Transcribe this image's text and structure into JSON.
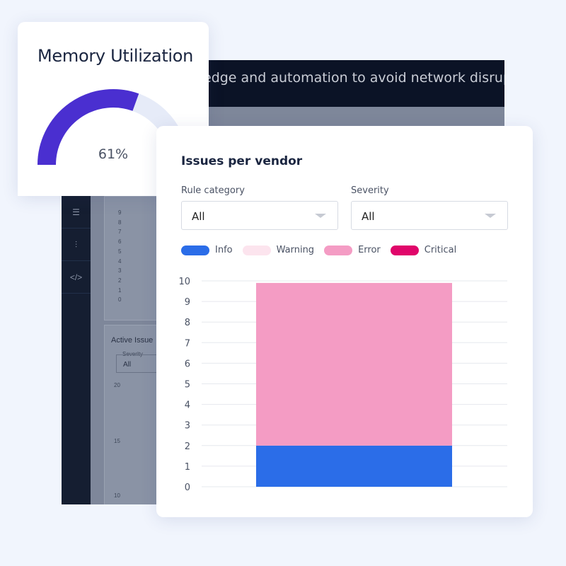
{
  "background_dashboard": {
    "banner_text": "edge and automation to avoid network disruptions",
    "sidebar_icons": [
      "list-icon",
      "sliders-icon",
      "code-icon"
    ],
    "sidebar_glyphs": [
      "☰",
      "⫶",
      "</>"
    ],
    "panel1_ticks": [
      "9",
      "8",
      "7",
      "6",
      "5",
      "4",
      "3",
      "2",
      "1",
      "0"
    ],
    "panel2_title": "Active Issue",
    "panel2_filter_label": "Severity",
    "panel2_filter_value": "All",
    "panel2_ticks": [
      "20",
      "15",
      "10"
    ]
  },
  "memory": {
    "title": "Memory Utilization",
    "value_label": "61%",
    "value": 61,
    "fill_color": "#4a2fd0",
    "track_color": "#e6ebf8"
  },
  "issues": {
    "title": "Issues per vendor",
    "filters": [
      {
        "label": "Rule category",
        "value": "All"
      },
      {
        "label": "Severity",
        "value": "All"
      }
    ]
  },
  "chart_data": {
    "type": "bar",
    "stacked": true,
    "categories": [
      ""
    ],
    "series": [
      {
        "name": "Info",
        "color": "#2b6de8",
        "values": [
          2
        ]
      },
      {
        "name": "Warning",
        "color": "#fce4ee",
        "values": [
          0
        ]
      },
      {
        "name": "Error",
        "color": "#f49cc4",
        "values": [
          7.9
        ]
      },
      {
        "name": "Critical",
        "color": "#e0066a",
        "values": [
          0
        ]
      }
    ],
    "yticks": [
      "0",
      "1",
      "2",
      "3",
      "4",
      "5",
      "6",
      "7",
      "8",
      "9",
      "10"
    ],
    "ylim": [
      0,
      10
    ],
    "grid": true,
    "legend": "top-left"
  }
}
